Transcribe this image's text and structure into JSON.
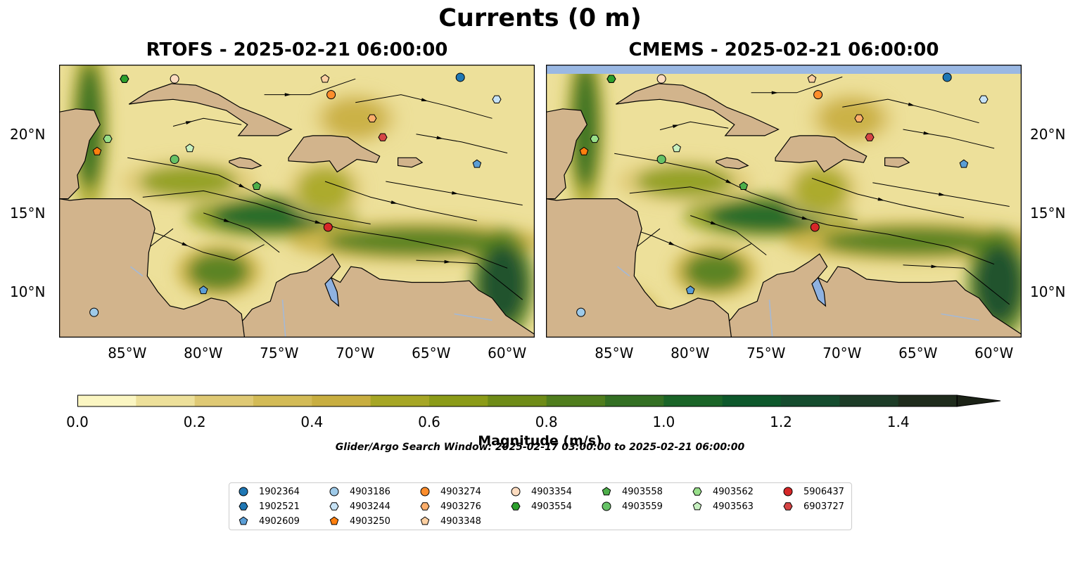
{
  "title": "Currents (0 m)",
  "panels": [
    {
      "title": "RTOFS - 2025-02-21 06:00:00",
      "model": "rtofs"
    },
    {
      "title": "CMEMS - 2025-02-21 06:00:00",
      "model": "cmems"
    }
  ],
  "map_extent": {
    "lon": [
      -89.5,
      -58.2
    ],
    "lat": [
      7.1,
      24.4
    ]
  },
  "lon_ticks": [
    "85°W",
    "80°W",
    "75°W",
    "70°W",
    "65°W",
    "60°W"
  ],
  "lat_ticks": [
    "10°N",
    "15°N",
    "20°N"
  ],
  "colorbar": {
    "label": "Magnitude (m/s)",
    "min": 0.0,
    "max": 1.5,
    "step": 0.1,
    "extend": "max",
    "ticks": [
      "0.0",
      "0.2",
      "0.4",
      "0.6",
      "0.8",
      "1.0",
      "1.2",
      "1.4"
    ],
    "colors": [
      "#fbf6c2",
      "#ede09a",
      "#dfc974",
      "#d3bb56",
      "#c8ae40",
      "#a6a625",
      "#8b9b18",
      "#6e8b17",
      "#4f7d1d",
      "#336f23",
      "#1a6427",
      "#0d582b",
      "#154c2e",
      "#1d3c27",
      "#1f2c1c"
    ]
  },
  "search_window": "Glider/Argo Search Window: 2025-02-17 03:00:00 to 2025-02-21 06:00:00",
  "legend": [
    {
      "label": "1902364",
      "marker": "circle",
      "color": "#1f77b4"
    },
    {
      "label": "1902521",
      "marker": "hexagon",
      "color": "#1f77b4"
    },
    {
      "label": "4902609",
      "marker": "pentagon",
      "color": "#5b9ed6"
    },
    {
      "label": "4903186",
      "marker": "circle",
      "color": "#9ecae9"
    },
    {
      "label": "4903244",
      "marker": "hexagon",
      "color": "#c6e2f5"
    },
    {
      "label": "4903250",
      "marker": "pentagon",
      "color": "#ff7f0e"
    },
    {
      "label": "4903274",
      "marker": "circle",
      "color": "#fd8d2c"
    },
    {
      "label": "4903276",
      "marker": "hexagon",
      "color": "#fdae6b"
    },
    {
      "label": "4903348",
      "marker": "pentagon",
      "color": "#fdd0a2"
    },
    {
      "label": "4903354",
      "marker": "circle",
      "color": "#fddcc0"
    },
    {
      "label": "4903554",
      "marker": "hexagon",
      "color": "#2ca02c"
    },
    {
      "label": "4903558",
      "marker": "pentagon",
      "color": "#4daf4a"
    },
    {
      "label": "4903559",
      "marker": "circle",
      "color": "#66c266"
    },
    {
      "label": "4903562",
      "marker": "hexagon",
      "color": "#98df8a"
    },
    {
      "label": "4903563",
      "marker": "pentagon",
      "color": "#c7f0c0"
    },
    {
      "label": "5906437",
      "marker": "circle",
      "color": "#d62728"
    },
    {
      "label": "6903727",
      "marker": "hexagon",
      "color": "#d64545"
    }
  ],
  "floats": [
    {
      "id": "1902364",
      "lon": -63.1,
      "lat": 23.6
    },
    {
      "id": "1902521",
      "lon": -85.2,
      "lat": 23.5
    },
    {
      "id": "4902609",
      "lon": -62.0,
      "lat": 18.1
    },
    {
      "id": "4903186",
      "lon": -87.2,
      "lat": 8.7
    },
    {
      "id": "4903244",
      "lon": -60.7,
      "lat": 22.2
    },
    {
      "id": "4903250",
      "lon": -87.0,
      "lat": 18.9
    },
    {
      "id": "4903274",
      "lon": -71.6,
      "lat": 22.5
    },
    {
      "id": "4903276",
      "lon": -68.9,
      "lat": 21.0
    },
    {
      "id": "4903348",
      "lon": -72.0,
      "lat": 23.5
    },
    {
      "id": "4903354",
      "lon": -81.9,
      "lat": 23.5
    },
    {
      "id": "4903554",
      "lon": -85.2,
      "lat": 23.5
    },
    {
      "id": "4903558",
      "lon": -76.5,
      "lat": 16.7
    },
    {
      "id": "4903559",
      "lon": -81.9,
      "lat": 18.4
    },
    {
      "id": "4903562",
      "lon": -86.3,
      "lat": 19.7
    },
    {
      "id": "4903563",
      "lon": -80.9,
      "lat": 19.1
    },
    {
      "id": "5906437",
      "lon": -71.8,
      "lat": 14.1
    },
    {
      "id": "6903727",
      "lon": -68.2,
      "lat": 19.8
    },
    {
      "id": "4902609b",
      "lon": -80.0,
      "lat": 10.1
    }
  ]
}
